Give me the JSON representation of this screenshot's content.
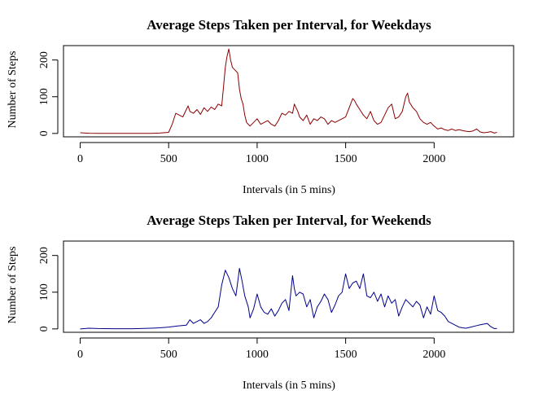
{
  "chart_data": [
    {
      "type": "line",
      "title": "Average Steps Taken per Interval, for Weekdays",
      "xlabel": "Intervals (in 5 mins)",
      "ylabel": "Number of Steps",
      "xlim": [
        0,
        2355
      ],
      "ylim": [
        0,
        230
      ],
      "xticks": [
        0,
        500,
        1000,
        1500,
        2000
      ],
      "yticks": [
        0,
        100,
        200
      ],
      "grid": false,
      "line_color": "#8b0000",
      "series": [
        {
          "x": [
            0,
            50,
            100,
            200,
            300,
            400,
            450,
            500,
            520,
            540,
            560,
            580,
            600,
            610,
            620,
            640,
            660,
            680,
            700,
            720,
            740,
            760,
            780,
            800,
            820,
            830,
            840,
            850,
            860,
            880,
            890,
            900,
            910,
            920,
            930,
            940,
            950,
            960,
            980,
            1000,
            1020,
            1040,
            1060,
            1080,
            1100,
            1120,
            1140,
            1160,
            1180,
            1200,
            1210,
            1220,
            1230,
            1240,
            1260,
            1280,
            1300,
            1320,
            1340,
            1360,
            1380,
            1400,
            1420,
            1440,
            1460,
            1480,
            1500,
            1520,
            1540,
            1550,
            1560,
            1580,
            1600,
            1620,
            1640,
            1660,
            1680,
            1700,
            1720,
            1740,
            1760,
            1780,
            1800,
            1820,
            1840,
            1850,
            1860,
            1880,
            1900,
            1920,
            1940,
            1960,
            1980,
            2000,
            2020,
            2040,
            2060,
            2080,
            2100,
            2120,
            2140,
            2160,
            2180,
            2200,
            2220,
            2240,
            2260,
            2280,
            2300,
            2320,
            2340,
            2355
          ],
          "values": [
            2,
            0.5,
            0.3,
            0.2,
            0.1,
            0.3,
            1,
            3,
            25,
            55,
            50,
            45,
            65,
            75,
            60,
            55,
            65,
            52,
            70,
            60,
            72,
            65,
            80,
            75,
            180,
            210,
            230,
            200,
            180,
            170,
            165,
            120,
            95,
            80,
            50,
            30,
            25,
            20,
            30,
            40,
            25,
            30,
            35,
            25,
            20,
            35,
            55,
            50,
            60,
            55,
            80,
            70,
            60,
            45,
            35,
            50,
            25,
            40,
            35,
            45,
            40,
            25,
            35,
            30,
            35,
            40,
            45,
            70,
            95,
            90,
            80,
            65,
            50,
            40,
            60,
            35,
            25,
            30,
            50,
            70,
            80,
            40,
            45,
            60,
            100,
            110,
            85,
            70,
            60,
            40,
            30,
            25,
            30,
            20,
            12,
            15,
            10,
            8,
            12,
            8,
            10,
            8,
            6,
            5,
            7,
            12,
            4,
            2,
            3,
            5,
            1,
            3
          ]
        }
      ]
    },
    {
      "type": "line",
      "title": "Average Steps Taken per Interval, for Weekends",
      "xlabel": "Intervals (in 5 mins)",
      "ylabel": "Number of Steps",
      "xlim": [
        0,
        2355
      ],
      "ylim": [
        0,
        230
      ],
      "xticks": [
        0,
        500,
        1000,
        1500,
        2000
      ],
      "yticks": [
        0,
        100,
        200
      ],
      "grid": false,
      "line_color": "#00008b",
      "series": [
        {
          "x": [
            0,
            50,
            100,
            200,
            300,
            400,
            450,
            500,
            550,
            600,
            620,
            640,
            660,
            680,
            700,
            720,
            740,
            760,
            780,
            800,
            820,
            840,
            860,
            880,
            900,
            915,
            930,
            950,
            960,
            980,
            1000,
            1020,
            1040,
            1060,
            1080,
            1100,
            1120,
            1140,
            1160,
            1180,
            1200,
            1210,
            1220,
            1240,
            1260,
            1280,
            1300,
            1320,
            1340,
            1360,
            1380,
            1400,
            1420,
            1440,
            1460,
            1480,
            1500,
            1520,
            1540,
            1560,
            1580,
            1600,
            1620,
            1640,
            1660,
            1680,
            1700,
            1720,
            1740,
            1760,
            1780,
            1800,
            1820,
            1840,
            1860,
            1880,
            1900,
            1920,
            1940,
            1960,
            1980,
            2000,
            2020,
            2040,
            2060,
            2080,
            2100,
            2120,
            2140,
            2160,
            2180,
            2200,
            2250,
            2300,
            2320,
            2340,
            2355
          ],
          "values": [
            0,
            2,
            1,
            0.5,
            0.5,
            2,
            3,
            5,
            8,
            10,
            25,
            15,
            20,
            25,
            15,
            20,
            30,
            45,
            60,
            120,
            160,
            140,
            110,
            90,
            165,
            130,
            90,
            60,
            30,
            55,
            95,
            60,
            45,
            40,
            55,
            35,
            50,
            70,
            80,
            50,
            145,
            110,
            90,
            100,
            95,
            60,
            80,
            30,
            60,
            75,
            95,
            80,
            45,
            65,
            90,
            100,
            150,
            110,
            125,
            130,
            110,
            150,
            90,
            85,
            100,
            75,
            95,
            60,
            90,
            70,
            80,
            35,
            60,
            80,
            70,
            60,
            75,
            65,
            30,
            60,
            40,
            90,
            50,
            45,
            35,
            20,
            15,
            10,
            5,
            3,
            2,
            4,
            10,
            15,
            6,
            1,
            1
          ]
        }
      ]
    }
  ]
}
